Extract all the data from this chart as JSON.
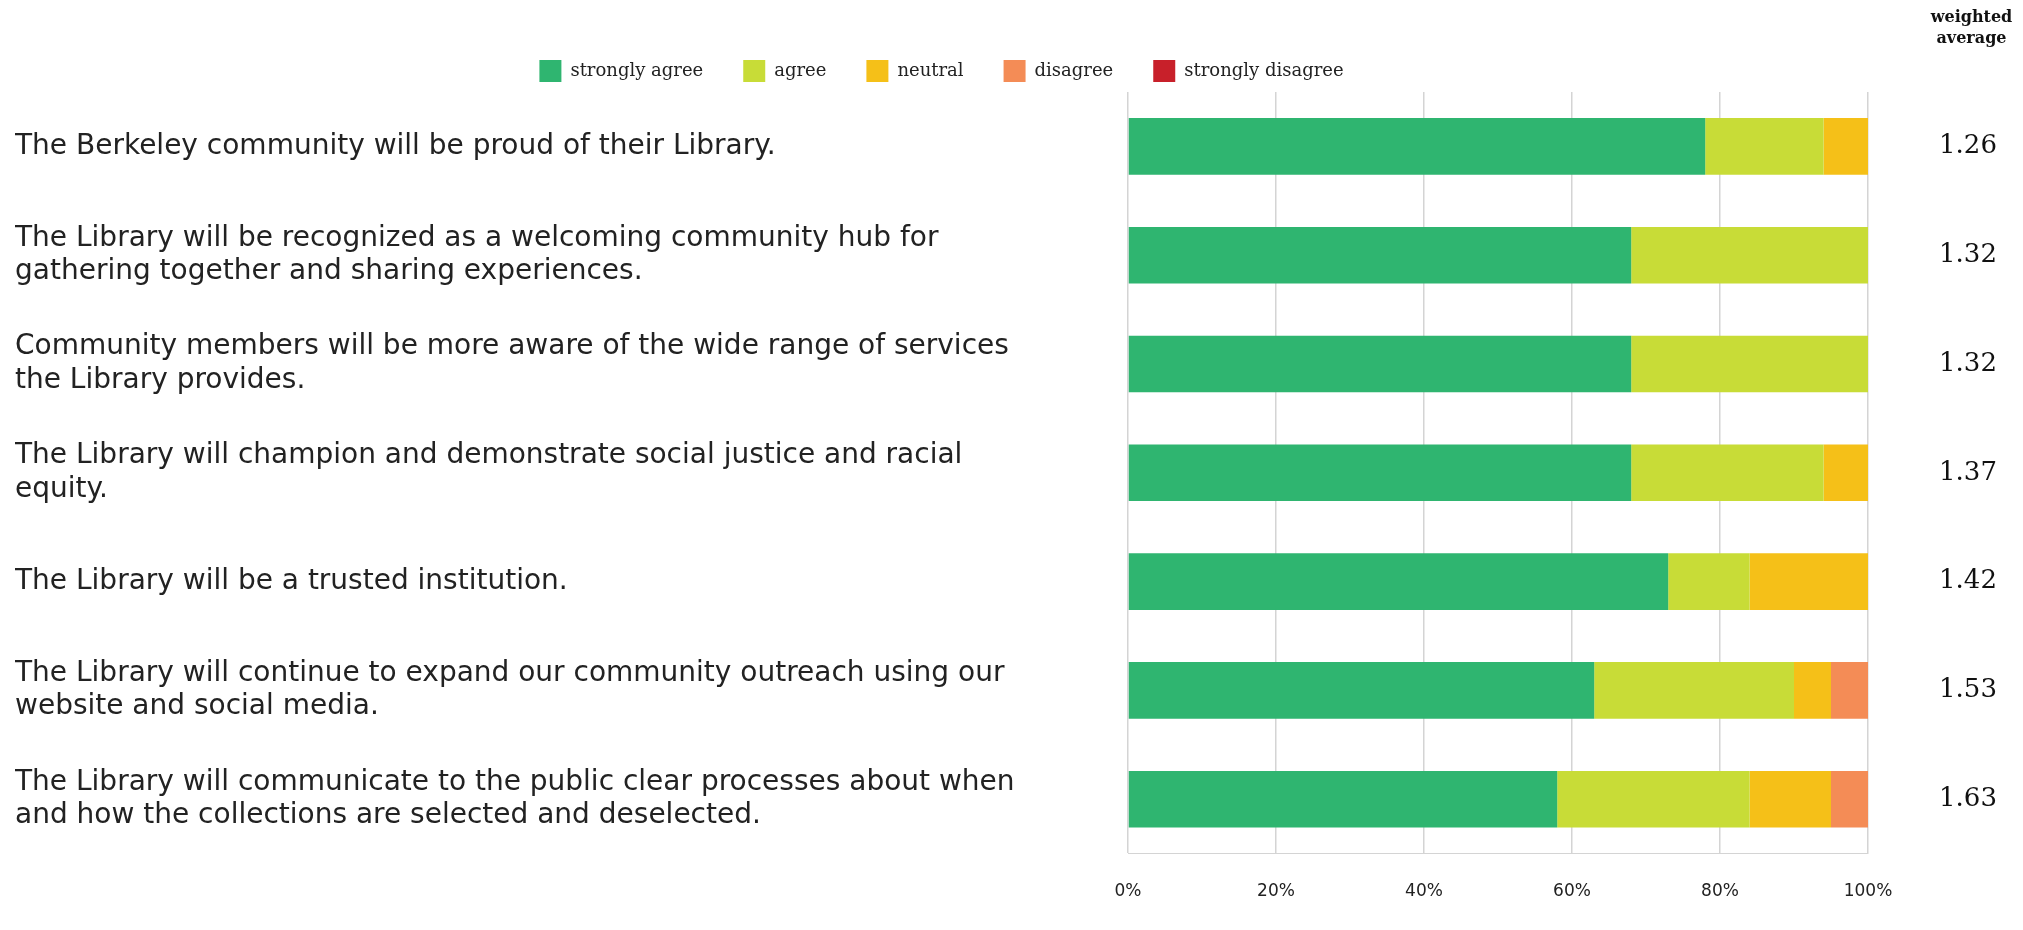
{
  "chart_data": {
    "type": "bar",
    "orientation": "horizontal",
    "stacked": true,
    "categories": [
      "The Berkeley community will be proud of their Library.",
      "The Library will be recognized as a welcoming community hub for gathering together and sharing experiences.",
      "Community members will be more aware of the wide range of services the Library provides.",
      "The Library will champion and demonstrate social justice and racial equity.",
      "The Library will be a trusted institution.",
      "The Library will continue to expand our community outreach using our website and social media.",
      "The Library will communicate to the public clear processes about when and how the collections are selected and deselected."
    ],
    "series": [
      {
        "name": "strongly agree",
        "color": "#2fb570",
        "values": [
          78,
          68,
          68,
          68,
          73,
          63,
          58
        ]
      },
      {
        "name": "agree",
        "color": "#c8dc37",
        "values": [
          16,
          32,
          32,
          26,
          11,
          27,
          26
        ]
      },
      {
        "name": "neutral",
        "color": "#f5c018",
        "values": [
          6,
          0,
          0,
          6,
          16,
          5,
          11
        ]
      },
      {
        "name": "disagree",
        "color": "#f48c56",
        "values": [
          0,
          0,
          0,
          0,
          0,
          5,
          5
        ]
      },
      {
        "name": "strongly disagree",
        "color": "#c8202a",
        "values": [
          0,
          0,
          0,
          0,
          0,
          0,
          0
        ]
      }
    ],
    "xlim": [
      0,
      100
    ],
    "xticks": [
      {
        "value": 0,
        "label": "0%"
      },
      {
        "value": 20,
        "label": "20%"
      },
      {
        "value": 40,
        "label": "40%"
      },
      {
        "value": 60,
        "label": "60%"
      },
      {
        "value": 80,
        "label": "80%"
      },
      {
        "value": 100,
        "label": "100%"
      }
    ],
    "grid": "x",
    "legend": "top",
    "annotations": [
      "weighted average",
      "1.26",
      "1.32",
      "1.32",
      "1.37",
      "1.42",
      "1.53",
      "1.63"
    ]
  }
}
